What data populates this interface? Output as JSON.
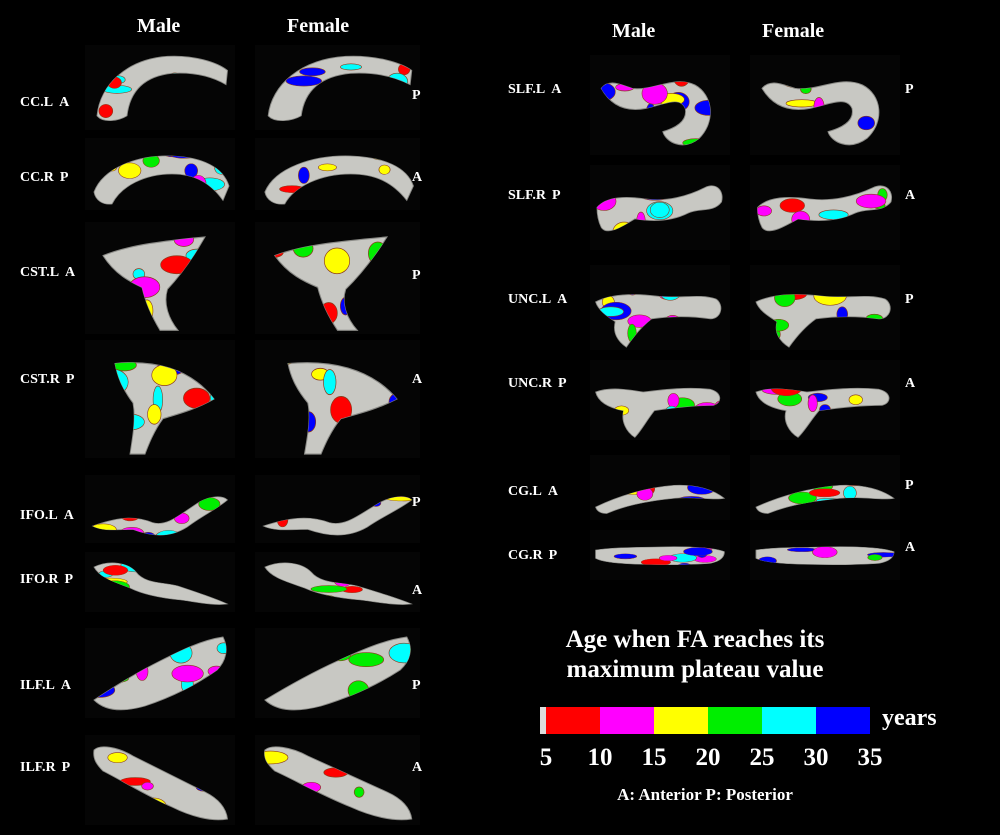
{
  "columns": {
    "male": "Male",
    "female": "Female"
  },
  "left_tracts": [
    {
      "name": "CC.L",
      "start": "A",
      "end": "P"
    },
    {
      "name": "CC.R",
      "start": "P",
      "end": "A"
    },
    {
      "name": "CST.L",
      "start": "A",
      "end": "P"
    },
    {
      "name": "CST.R",
      "start": "P",
      "end": "A"
    },
    {
      "name": "IFO.L",
      "start": "A",
      "end": "P"
    },
    {
      "name": "IFO.R",
      "start": "P",
      "end": "A"
    },
    {
      "name": "ILF.L",
      "start": "A",
      "end": "P"
    },
    {
      "name": "ILF.R",
      "start": "P",
      "end": "A"
    }
  ],
  "right_tracts": [
    {
      "name": "SLF.L",
      "start": "A",
      "end": "P"
    },
    {
      "name": "SLF.R",
      "start": "P",
      "end": "A"
    },
    {
      "name": "UNC.L",
      "start": "A",
      "end": "P"
    },
    {
      "name": "UNC.R",
      "start": "P",
      "end": "A"
    },
    {
      "name": "CG.L",
      "start": "A",
      "end": "P"
    },
    {
      "name": "CG.R",
      "start": "P",
      "end": "A"
    }
  ],
  "legend": {
    "title_line1": "Age when FA reaches its",
    "title_line2": "maximum plateau value",
    "units": "years",
    "ticks": [
      "5",
      "10",
      "15",
      "20",
      "25",
      "30",
      "35"
    ],
    "colors": [
      "#ff0000",
      "#ff00ff",
      "#ffff00",
      "#00ee00",
      "#00ffff",
      "#0000ff"
    ],
    "note": "A: Anterior  P: Posterior"
  },
  "tract_surface_color": "#c8c8c3"
}
